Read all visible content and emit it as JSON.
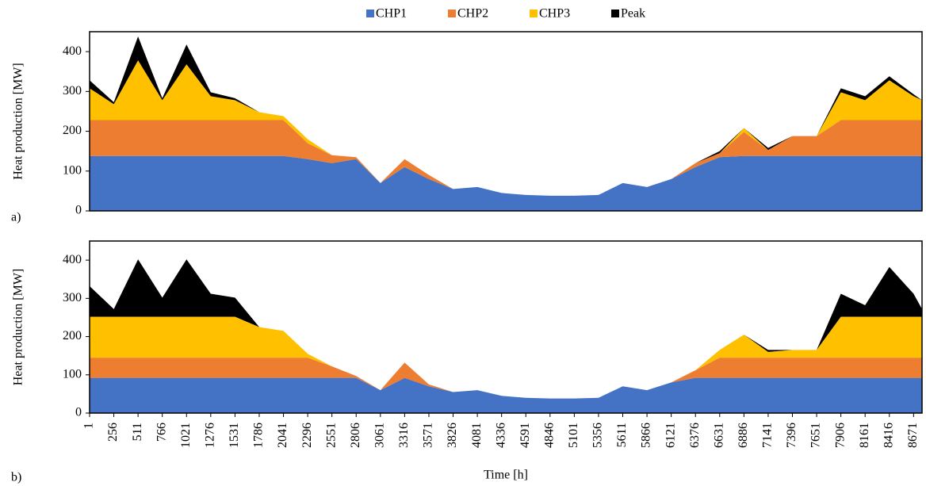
{
  "chart_data": [
    {
      "type": "stacked-area",
      "label": "a)",
      "ylabel": "Heat production [MW]",
      "ylim": [
        0,
        450
      ],
      "yticks": [
        0,
        100,
        200,
        300,
        400
      ],
      "xlim": [
        1,
        8760
      ],
      "x": [
        1,
        256,
        511,
        766,
        1021,
        1276,
        1531,
        1786,
        2041,
        2296,
        2551,
        2806,
        3061,
        3316,
        3571,
        3826,
        4081,
        4336,
        4591,
        4846,
        5101,
        5356,
        5611,
        5866,
        6121,
        6376,
        6631,
        6886,
        7141,
        7396,
        7651,
        7906,
        8161,
        8416,
        8671,
        8760
      ],
      "series": [
        {
          "name": "CHP1",
          "color": "#4472c4",
          "values": [
            138,
            138,
            138,
            138,
            138,
            138,
            138,
            138,
            138,
            130,
            120,
            130,
            70,
            110,
            80,
            55,
            60,
            45,
            40,
            38,
            38,
            40,
            70,
            60,
            80,
            110,
            135,
            138,
            138,
            138,
            138,
            138,
            138,
            138,
            138,
            138
          ]
        },
        {
          "name": "CHP2",
          "color": "#ed7d31",
          "values": [
            90,
            90,
            90,
            90,
            90,
            90,
            90,
            90,
            90,
            40,
            20,
            5,
            0,
            20,
            10,
            0,
            0,
            0,
            0,
            0,
            0,
            0,
            0,
            0,
            0,
            10,
            10,
            60,
            15,
            50,
            50,
            90,
            90,
            90,
            90,
            90
          ]
        },
        {
          "name": "CHP3",
          "color": "#ffc000",
          "values": [
            80,
            40,
            150,
            50,
            140,
            60,
            50,
            20,
            10,
            10,
            0,
            0,
            0,
            0,
            0,
            0,
            0,
            0,
            0,
            0,
            0,
            0,
            0,
            0,
            0,
            0,
            0,
            10,
            0,
            0,
            0,
            70,
            50,
            100,
            60,
            50
          ]
        },
        {
          "name": "Peak",
          "color": "#000000",
          "values": [
            20,
            5,
            60,
            5,
            50,
            10,
            5,
            0,
            0,
            0,
            0,
            0,
            0,
            0,
            0,
            0,
            0,
            0,
            0,
            0,
            0,
            0,
            0,
            0,
            0,
            0,
            5,
            0,
            5,
            0,
            0,
            10,
            10,
            10,
            5,
            0
          ]
        }
      ]
    },
    {
      "type": "stacked-area",
      "label": "b)",
      "ylabel": "Heat production [MW]",
      "xlabel": "Time [h]",
      "ylim": [
        0,
        450
      ],
      "yticks": [
        0,
        100,
        200,
        300,
        400
      ],
      "xlim": [
        1,
        8760
      ],
      "xticks": [
        1,
        256,
        511,
        766,
        1021,
        1276,
        1531,
        1786,
        2041,
        2296,
        2551,
        2806,
        3061,
        3316,
        3571,
        3826,
        4081,
        4336,
        4591,
        4846,
        5101,
        5356,
        5611,
        5866,
        6121,
        6376,
        6631,
        6886,
        7141,
        7396,
        7651,
        7906,
        8161,
        8416,
        8671
      ],
      "x": [
        1,
        256,
        511,
        766,
        1021,
        1276,
        1531,
        1786,
        2041,
        2296,
        2551,
        2806,
        3061,
        3316,
        3571,
        3826,
        4081,
        4336,
        4591,
        4846,
        5101,
        5356,
        5611,
        5866,
        6121,
        6376,
        6631,
        6886,
        7141,
        7396,
        7651,
        7906,
        8161,
        8416,
        8671,
        8760
      ],
      "series": [
        {
          "color": "#4472c4",
          "values": [
            92,
            92,
            92,
            92,
            92,
            92,
            92,
            92,
            92,
            92,
            92,
            92,
            60,
            92,
            70,
            55,
            60,
            45,
            40,
            38,
            38,
            40,
            70,
            60,
            80,
            92,
            92,
            92,
            92,
            92,
            92,
            92,
            92,
            92,
            92,
            92
          ]
        },
        {
          "color": "#ed7d31",
          "values": [
            53,
            53,
            53,
            53,
            53,
            53,
            53,
            53,
            53,
            53,
            30,
            5,
            0,
            40,
            5,
            0,
            0,
            0,
            0,
            0,
            0,
            0,
            0,
            0,
            0,
            20,
            53,
            53,
            53,
            53,
            53,
            53,
            53,
            53,
            53,
            53
          ]
        },
        {
          "color": "#ffc000",
          "values": [
            107,
            107,
            107,
            107,
            107,
            107,
            107,
            80,
            70,
            10,
            0,
            0,
            0,
            0,
            0,
            0,
            0,
            0,
            0,
            0,
            0,
            0,
            0,
            0,
            0,
            0,
            20,
            60,
            15,
            20,
            20,
            107,
            107,
            107,
            107,
            107
          ]
        },
        {
          "color": "#000000",
          "values": [
            80,
            20,
            150,
            50,
            150,
            60,
            50,
            0,
            0,
            0,
            0,
            0,
            0,
            0,
            0,
            0,
            0,
            0,
            0,
            0,
            0,
            0,
            0,
            0,
            0,
            0,
            0,
            0,
            5,
            0,
            0,
            60,
            30,
            130,
            60,
            20
          ]
        }
      ]
    }
  ]
}
